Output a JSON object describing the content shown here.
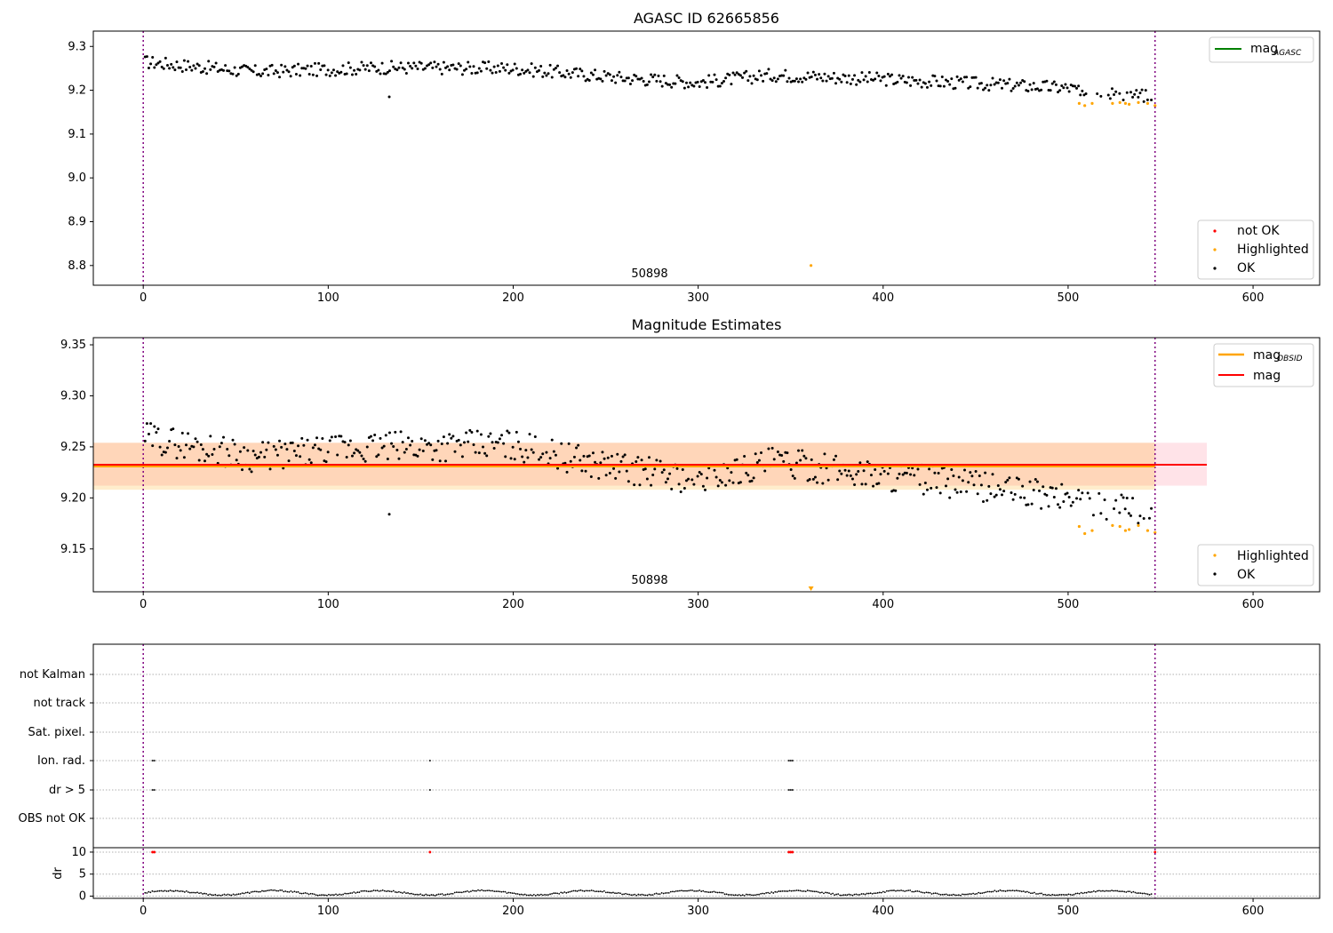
{
  "chart_data": [
    {
      "type": "scatter",
      "title": "AGASC ID 62665856",
      "xlim": [
        -27,
        636
      ],
      "ylim": [
        8.755,
        9.335
      ],
      "xticks": [
        "0",
        "100",
        "200",
        "300",
        "400",
        "500",
        "600"
      ],
      "yticks": [
        "9.3",
        "9.2",
        "9.1",
        "9.0",
        "8.9",
        "8.8"
      ],
      "vlines": [
        0,
        547
      ],
      "grid": false,
      "legend_top": {
        "position": "top-right",
        "entries": [
          {
            "label": "mag",
            "sub": "AGASC",
            "color": "#008000"
          }
        ]
      },
      "legend_bottom": {
        "position": "bottom-right",
        "entries": [
          {
            "label": "not OK",
            "color": "#ff0000"
          },
          {
            "label": "Highlighted",
            "color": "#ffa500"
          },
          {
            "label": "OK",
            "color": "#000000"
          }
        ]
      },
      "annotation": {
        "text": "50898",
        "x": 273,
        "y": 8.762
      },
      "outlier": {
        "x": 361,
        "y": 8.8
      },
      "series": [
        {
          "name": "OK",
          "color": "#000000",
          "trend": [
            [
              0,
              9.265
            ],
            [
              60,
              9.242
            ],
            [
              130,
              9.252
            ],
            [
              200,
              9.25
            ],
            [
              260,
              9.228
            ],
            [
              300,
              9.218
            ],
            [
              340,
              9.235
            ],
            [
              400,
              9.225
            ],
            [
              450,
              9.215
            ],
            [
              500,
              9.205
            ],
            [
              547,
              9.185
            ]
          ]
        },
        {
          "name": "Highlighted",
          "color": "#ffa500",
          "points": [
            [
              506,
              9.17
            ],
            [
              509,
              9.165
            ],
            [
              513,
              9.17
            ],
            [
              524,
              9.17
            ],
            [
              528,
              9.172
            ],
            [
              531,
              9.17
            ],
            [
              533,
              9.168
            ],
            [
              538,
              9.172
            ],
            [
              543,
              9.17
            ],
            [
              547,
              9.165
            ]
          ]
        }
      ]
    },
    {
      "type": "scatter",
      "title": "Magnitude Estimates",
      "xlim": [
        -27,
        636
      ],
      "ylim": [
        9.108,
        9.357
      ],
      "xticks": [
        "0",
        "100",
        "200",
        "300",
        "400",
        "500",
        "600"
      ],
      "yticks": [
        "9.35",
        "9.30",
        "9.25",
        "9.20",
        "9.15"
      ],
      "vlines": [
        0,
        547
      ],
      "legend_top": {
        "position": "top-right",
        "entries": [
          {
            "label": "mag",
            "sub": "OBSID",
            "color": "#ffa500"
          },
          {
            "label": "mag",
            "color": "#ff0000"
          }
        ]
      },
      "legend_bottom": {
        "position": "bottom-right",
        "entries": [
          {
            "label": "Highlighted",
            "color": "#ffa500"
          },
          {
            "label": "OK",
            "color": "#000000"
          }
        ]
      },
      "annotation": {
        "text": "50898",
        "x": 273,
        "y": 9.114
      },
      "mag": 9.2325,
      "mag_band": [
        9.212,
        9.254
      ],
      "mag_obsid": 9.231,
      "mag_obsid_band": [
        9.208,
        9.254
      ],
      "series": [
        {
          "name": "OK",
          "color": "#000000",
          "trend": [
            [
              0,
              9.26
            ],
            [
              60,
              9.24
            ],
            [
              130,
              9.25
            ],
            [
              200,
              9.252
            ],
            [
              240,
              9.235
            ],
            [
              300,
              9.218
            ],
            [
              340,
              9.235
            ],
            [
              400,
              9.222
            ],
            [
              450,
              9.212
            ],
            [
              500,
              9.2
            ],
            [
              547,
              9.185
            ]
          ]
        },
        {
          "name": "Highlighted",
          "color": "#ffa500",
          "points": [
            [
              506,
              9.172
            ],
            [
              509,
              9.165
            ],
            [
              513,
              9.168
            ],
            [
              524,
              9.173
            ],
            [
              528,
              9.172
            ],
            [
              531,
              9.168
            ],
            [
              533,
              9.169
            ],
            [
              538,
              9.173
            ],
            [
              543,
              9.168
            ],
            [
              547,
              9.166
            ]
          ]
        }
      ]
    },
    {
      "type": "scatter",
      "xlim": [
        -27,
        636
      ],
      "flag_labels": [
        "not Kalman",
        "not track",
        "Sat. pixel.",
        "Ion. rad.",
        "dr > 5",
        "OBS not OK"
      ],
      "flags": {
        "Ion. rad.": [
          5,
          6,
          155,
          349,
          350,
          351
        ],
        "dr > 5": [
          5,
          6,
          155,
          349,
          350,
          351
        ]
      },
      "ylabel": "dr",
      "dr_ylim": [
        -0.5,
        11
      ],
      "dr_yticks": [
        "10",
        "5",
        "0"
      ],
      "dr_high": [
        5,
        6,
        155,
        349,
        350,
        351,
        547
      ],
      "xticks": [
        "0",
        "100",
        "200",
        "300",
        "400",
        "500",
        "600"
      ],
      "vlines": [
        0,
        547
      ]
    }
  ]
}
